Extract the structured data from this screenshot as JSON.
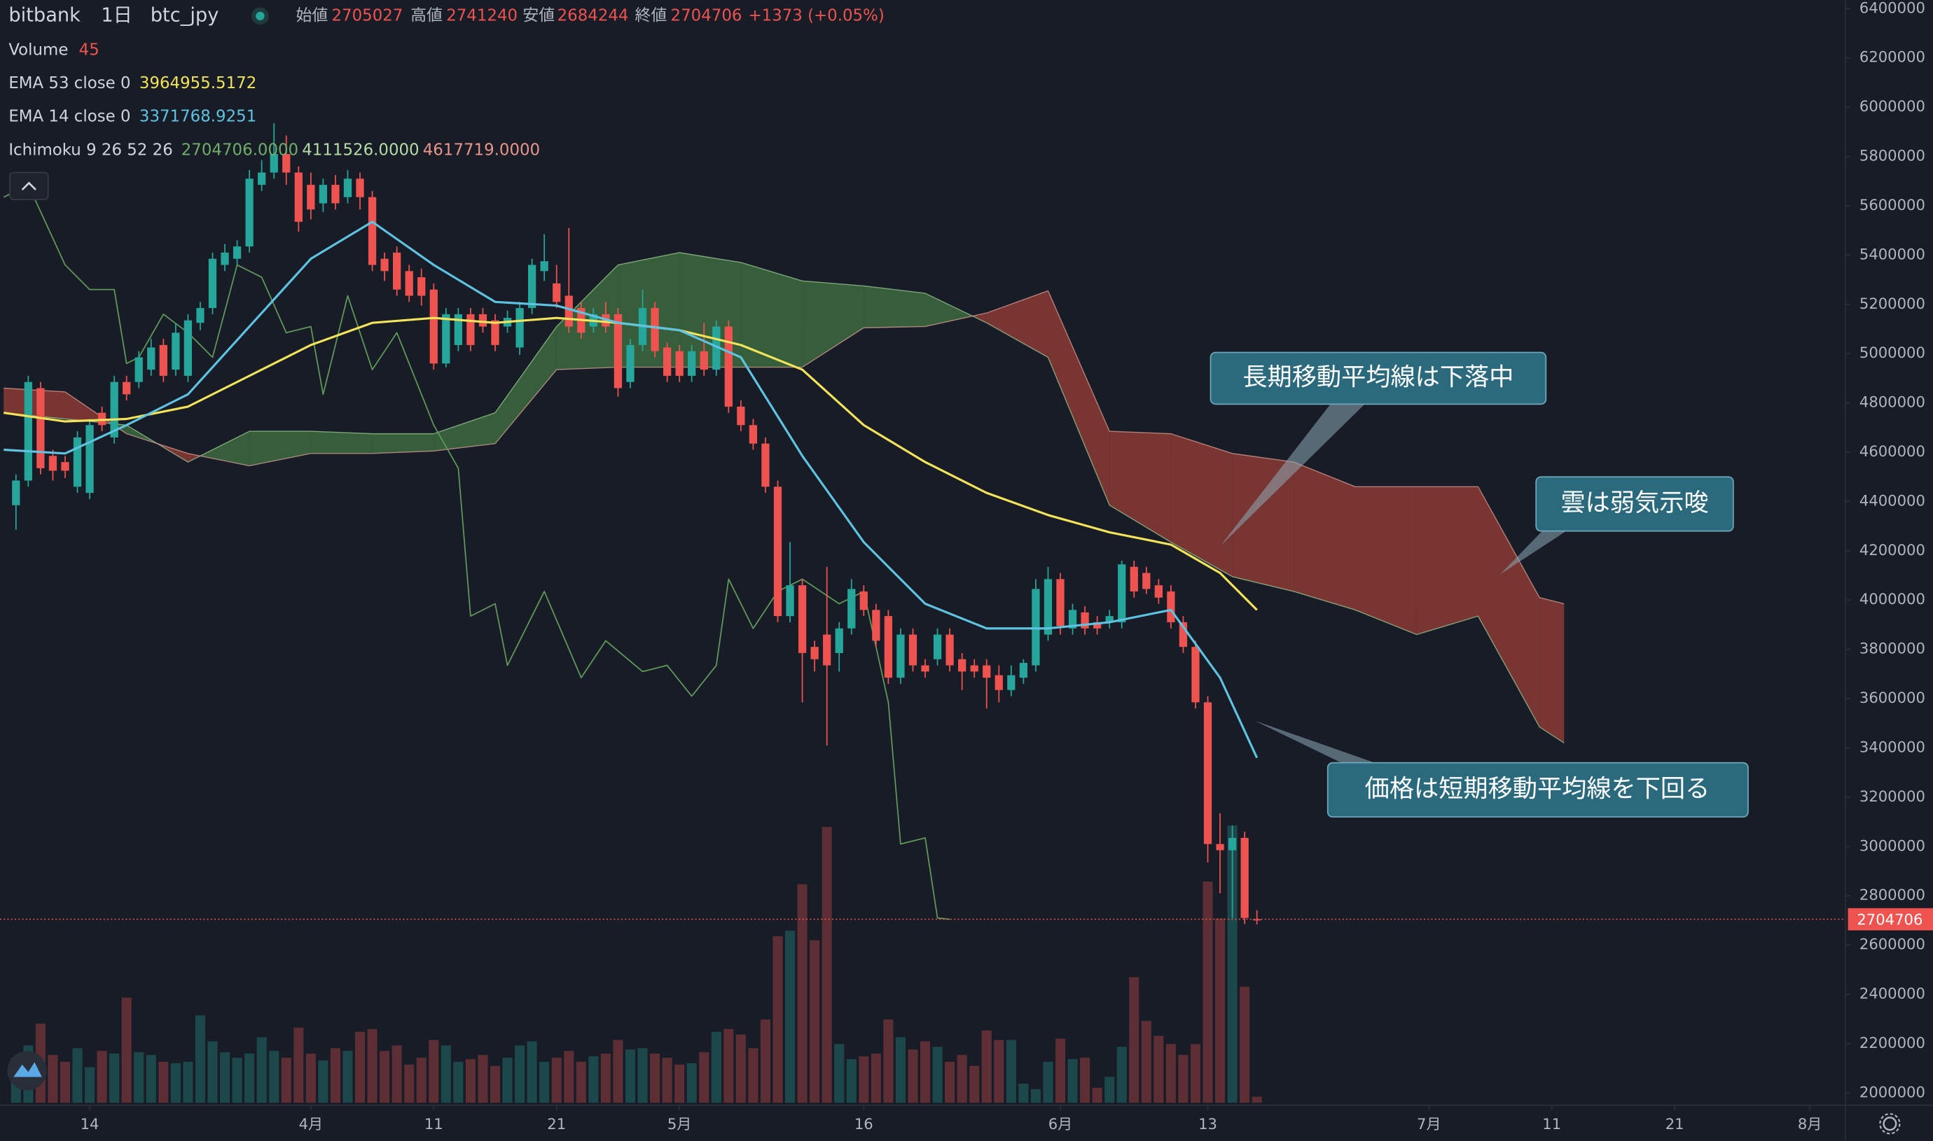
{
  "chart_data": {
    "type": "candlestick",
    "exchange": "bitbank",
    "interval": "1日",
    "symbol": "btc_jpy",
    "ohlc_labels": [
      "始値",
      "高値",
      "安値",
      "終値"
    ],
    "change_label": "+1373 (+0.05%)",
    "x": [
      67,
      68,
      69,
      70,
      71,
      72,
      73,
      74,
      75,
      76,
      77,
      78,
      79,
      80,
      81,
      82,
      83,
      84,
      85,
      86,
      87,
      88,
      89,
      90,
      91,
      92,
      93,
      94,
      95,
      96,
      97,
      98,
      99,
      100,
      101,
      102,
      103,
      104,
      105,
      106,
      107,
      108,
      109,
      110,
      111,
      112,
      113,
      114,
      115,
      116,
      117,
      118,
      119,
      120,
      121,
      122,
      123,
      124,
      125,
      126,
      127,
      128,
      129,
      130,
      131,
      132,
      133,
      134,
      135,
      136,
      137,
      138,
      139,
      140,
      141,
      142,
      143,
      144,
      145,
      146,
      147,
      148,
      149,
      150,
      151,
      152,
      153,
      154,
      155,
      156,
      157,
      158,
      159,
      160,
      161,
      162,
      163,
      164,
      165,
      166,
      167,
      168
    ],
    "open": [
      4385000,
      4485000,
      4860000,
      4585000,
      4560000,
      4460000,
      4435000,
      4760000,
      4660000,
      4885000,
      4885000,
      4935000,
      5035000,
      4935000,
      4910000,
      5125000,
      5185000,
      5360000,
      5385000,
      5435000,
      5685000,
      5735000,
      5810000,
      5735000,
      5685000,
      5610000,
      5685000,
      5635000,
      5710000,
      5635000,
      5385000,
      5410000,
      5335000,
      5310000,
      5260000,
      4960000,
      5035000,
      5160000,
      5160000,
      5135000,
      5110000,
      5025000,
      5185000,
      5335000,
      5285000,
      5235000,
      5185000,
      5110000,
      5160000,
      5160000,
      4885000,
      5035000,
      5185000,
      5025000,
      5010000,
      4910000,
      5010000,
      4935000,
      5110000,
      4785000,
      4710000,
      4635000,
      4460000,
      3935000,
      4060000,
      3810000,
      3860000,
      3785000,
      3885000,
      4035000,
      3960000,
      3935000,
      3685000,
      3860000,
      3735000,
      3760000,
      3860000,
      3760000,
      3735000,
      3735000,
      3695000,
      3635000,
      3685000,
      3735000,
      3860000,
      4085000,
      3885000,
      3950000,
      3910000,
      3910000,
      3910000,
      4135000,
      4110000,
      4060000,
      4035000,
      3910000,
      3810000,
      3585000,
      3010000,
      2985000,
      3035000,
      2705027
    ],
    "high": [
      4510000,
      4910000,
      4885000,
      4610000,
      4585000,
      4685000,
      4735000,
      4785000,
      4910000,
      4910000,
      5010000,
      5060000,
      5060000,
      5125000,
      5160000,
      5210000,
      5410000,
      5445000,
      5460000,
      5745000,
      5785000,
      5935000,
      5885000,
      5760000,
      5735000,
      5710000,
      5725000,
      5745000,
      5735000,
      5660000,
      5410000,
      5435000,
      5360000,
      5345000,
      5285000,
      5185000,
      5185000,
      5185000,
      5185000,
      5160000,
      5175000,
      5210000,
      5385000,
      5485000,
      5360000,
      5510000,
      5210000,
      5185000,
      5210000,
      5185000,
      5060000,
      5260000,
      5210000,
      5045000,
      5035000,
      5035000,
      5125000,
      5135000,
      5135000,
      4810000,
      4735000,
      4660000,
      4485000,
      4235000,
      4085000,
      3835000,
      4135000,
      3910000,
      4085000,
      4060000,
      3985000,
      3960000,
      3885000,
      3885000,
      3760000,
      3885000,
      3885000,
      3785000,
      3760000,
      3760000,
      3735000,
      3735000,
      3760000,
      4085000,
      4135000,
      4110000,
      3985000,
      3975000,
      3935000,
      3960000,
      4160000,
      4160000,
      4135000,
      4085000,
      4060000,
      3935000,
      3835000,
      3610000,
      3135000,
      3085000,
      3060000,
      2741240
    ],
    "low": [
      4285000,
      4460000,
      4510000,
      4485000,
      4495000,
      4435000,
      4410000,
      4685000,
      4635000,
      4810000,
      4860000,
      4910000,
      4885000,
      4910000,
      4885000,
      5095000,
      5160000,
      5335000,
      5360000,
      5410000,
      5660000,
      5710000,
      5685000,
      5495000,
      5545000,
      5575000,
      5585000,
      5610000,
      5585000,
      5335000,
      5295000,
      5235000,
      5210000,
      5195000,
      4935000,
      4945000,
      5010000,
      5010000,
      5085000,
      5010000,
      5085000,
      4995000,
      5160000,
      5295000,
      5185000,
      5085000,
      5060000,
      5085000,
      5085000,
      4825000,
      4860000,
      5010000,
      4985000,
      4885000,
      4885000,
      4885000,
      4910000,
      4910000,
      4760000,
      4685000,
      4610000,
      4435000,
      3910000,
      3910000,
      3585000,
      3710000,
      3410000,
      3710000,
      3860000,
      3935000,
      3810000,
      3660000,
      3660000,
      3710000,
      3685000,
      3735000,
      3710000,
      3635000,
      3685000,
      3560000,
      3585000,
      3610000,
      3660000,
      3710000,
      3835000,
      3860000,
      3860000,
      3860000,
      3860000,
      3885000,
      3885000,
      4010000,
      4025000,
      3985000,
      3885000,
      3785000,
      3560000,
      2935000,
      2810000,
      2710000,
      2685000,
      2684244
    ],
    "close": [
      4485000,
      4885000,
      4535000,
      4525000,
      4525000,
      4660000,
      4710000,
      4710000,
      4885000,
      4835000,
      4985000,
      5025000,
      4910000,
      5085000,
      5135000,
      5185000,
      5385000,
      5410000,
      5435000,
      5710000,
      5735000,
      5810000,
      5735000,
      5535000,
      5585000,
      5685000,
      5610000,
      5710000,
      5635000,
      5360000,
      5335000,
      5260000,
      5235000,
      5235000,
      4960000,
      5160000,
      5160000,
      5035000,
      5110000,
      5035000,
      5145000,
      5185000,
      5360000,
      5375000,
      5210000,
      5110000,
      5085000,
      5160000,
      5110000,
      4860000,
      5035000,
      5185000,
      5010000,
      4910000,
      4910000,
      5010000,
      4935000,
      5110000,
      4785000,
      4710000,
      4635000,
      4460000,
      3935000,
      4060000,
      3785000,
      3760000,
      3735000,
      3885000,
      4045000,
      3960000,
      3835000,
      3685000,
      3860000,
      3735000,
      3710000,
      3860000,
      3735000,
      3710000,
      3710000,
      3685000,
      3635000,
      3695000,
      3745000,
      4045000,
      4085000,
      3895000,
      3960000,
      3885000,
      3885000,
      3935000,
      4145000,
      4035000,
      4045000,
      4010000,
      3910000,
      3810000,
      3585000,
      3010000,
      2985000,
      3035000,
      2710000,
      2704706
    ],
    "volume": [
      330,
      420,
      580,
      350,
      300,
      400,
      260,
      380,
      360,
      770,
      370,
      350,
      300,
      290,
      300,
      640,
      450,
      370,
      330,
      360,
      480,
      380,
      330,
      550,
      360,
      310,
      400,
      380,
      520,
      540,
      380,
      420,
      280,
      330,
      460,
      420,
      300,
      320,
      350,
      270,
      330,
      420,
      450,
      300,
      330,
      380,
      300,
      340,
      360,
      460,
      390,
      400,
      360,
      330,
      280,
      290,
      370,
      520,
      540,
      500,
      400,
      610,
      1220,
      1260,
      1600,
      1190,
      2020,
      430,
      320,
      340,
      360,
      610,
      480,
      390,
      450,
      410,
      300,
      350,
      270,
      530,
      460,
      460,
      140,
      100,
      300,
      470,
      320,
      330,
      110,
      190,
      410,
      920,
      600,
      490,
      430,
      350,
      430,
      1620,
      1350,
      2030,
      850,
      45
    ],
    "colors": {
      "up": "#26a69a",
      "down": "#ef5350"
    },
    "xlim": [
      65.7,
      215.9
    ],
    "ylim": [
      1950000,
      6435000
    ],
    "xticks": [
      {
        "value": 73,
        "label": "14"
      },
      {
        "value": 91,
        "label": "4月"
      },
      {
        "value": 101,
        "label": "11"
      },
      {
        "value": 111,
        "label": "21"
      },
      {
        "value": 121,
        "label": "5月"
      },
      {
        "value": 136,
        "label": "16"
      },
      {
        "value": 152,
        "label": "6月"
      },
      {
        "value": 164,
        "label": "13"
      },
      {
        "value": 182,
        "label": "7月"
      },
      {
        "value": 192,
        "label": "11"
      },
      {
        "value": 202,
        "label": "21"
      },
      {
        "value": 213,
        "label": "8月"
      }
    ],
    "yticks": [
      2000000,
      2200000,
      2400000,
      2600000,
      2800000,
      3000000,
      3200000,
      3400000,
      3600000,
      3800000,
      4000000,
      4200000,
      4400000,
      4600000,
      4800000,
      5000000,
      5200000,
      5400000,
      5600000,
      5800000,
      6000000,
      6200000,
      6400000
    ],
    "grid": false,
    "last_price_line": true,
    "indicators": {
      "volume_label": "Volume",
      "ema53": {
        "name": "EMA 53 close 0",
        "value": 3964955.5172,
        "color": "#f2e35a",
        "x": [
          66,
          71,
          76,
          81,
          86,
          91,
          96,
          101,
          106,
          111,
          116,
          121,
          126,
          131,
          136,
          141,
          146,
          151,
          156,
          161,
          165,
          168
        ],
        "values": [
          4760000,
          4725000,
          4735000,
          4785000,
          4910000,
          5035000,
          5125000,
          5145000,
          5125000,
          5145000,
          5125000,
          5095000,
          5035000,
          4935000,
          4710000,
          4560000,
          4435000,
          4345000,
          4275000,
          4225000,
          4110000,
          3960000
        ]
      },
      "ema14": {
        "name": "EMA 14 close 0",
        "value": 3371768.9251,
        "color": "#5ec3e0",
        "x": [
          66,
          71,
          76,
          81,
          86,
          91,
          96,
          101,
          106,
          111,
          116,
          121,
          126,
          131,
          136,
          141,
          146,
          151,
          156,
          161,
          165,
          168
        ],
        "values": [
          4610000,
          4595000,
          4710000,
          4835000,
          5110000,
          5385000,
          5535000,
          5360000,
          5210000,
          5195000,
          5125000,
          5095000,
          4985000,
          4585000,
          4235000,
          3985000,
          3885000,
          3885000,
          3910000,
          3960000,
          3685000,
          3360000
        ]
      },
      "ichimoku": {
        "name": "Ichimoku 9 26 52 26",
        "legend_values": [
          {
            "value": 2704706,
            "label": "2704706.0000"
          },
          {
            "value": 4111526,
            "label": "4111526.0000"
          },
          {
            "value": 4617719,
            "label": "4617719.0000"
          }
        ],
        "legend_colors": [
          "#6fae6a",
          "#b5dba6",
          "#e8948a"
        ],
        "lagging": {
          "color": "#5f9a58",
          "x": [
            66,
            68,
            71,
            73,
            75,
            76,
            77,
            79,
            81,
            83,
            85,
            87,
            89,
            91,
            92,
            94,
            96,
            98,
            100,
            101,
            103,
            104,
            106,
            107,
            110,
            113,
            115,
            118,
            120,
            122,
            124,
            125,
            127,
            129,
            131,
            134,
            136,
            138,
            139,
            141,
            142,
            143
          ],
          "values": [
            5635000,
            5685000,
            5360000,
            5260000,
            5260000,
            4960000,
            4985000,
            5160000,
            5085000,
            4985000,
            5360000,
            5310000,
            5085000,
            5110000,
            4835000,
            5235000,
            4935000,
            5085000,
            4835000,
            4710000,
            4535000,
            3935000,
            3985000,
            3735000,
            4035000,
            3685000,
            3835000,
            3710000,
            3735000,
            3610000,
            3735000,
            4085000,
            3885000,
            4035000,
            4085000,
            3985000,
            4035000,
            3585000,
            3010000,
            3035000,
            2710000,
            2704706
          ]
        },
        "cloud_x": [
          66,
          71,
          76,
          81,
          86,
          91,
          96,
          101,
          106,
          111,
          116,
          121,
          126,
          131,
          136,
          141,
          146,
          151,
          156,
          161,
          166,
          171,
          176,
          181,
          186,
          191,
          193
        ],
        "span_a": [
          4760000,
          4735000,
          4710000,
          4560000,
          4685000,
          4685000,
          4675000,
          4675000,
          4760000,
          5110000,
          5360000,
          5410000,
          5370000,
          5295000,
          5275000,
          5245000,
          5125000,
          4985000,
          4385000,
          4235000,
          4095000,
          4035000,
          3960000,
          3860000,
          3935000,
          3485000,
          3420000
        ],
        "span_b": [
          4860000,
          4845000,
          4675000,
          4595000,
          4545000,
          4595000,
          4595000,
          4605000,
          4635000,
          4935000,
          4945000,
          4945000,
          4945000,
          4945000,
          5105000,
          5110000,
          5165000,
          5255000,
          4685000,
          4675000,
          4595000,
          4560000,
          4460000,
          4460000,
          4460000,
          4010000,
          3985000
        ],
        "cloud_up_color": "#3d6a3e",
        "cloud_down_color": "#8a3a34"
      }
    },
    "annotations": [
      "長期移動平均線は下落中",
      "雲は弱気示唆",
      "価格は短期移動平均線を下回る"
    ]
  }
}
